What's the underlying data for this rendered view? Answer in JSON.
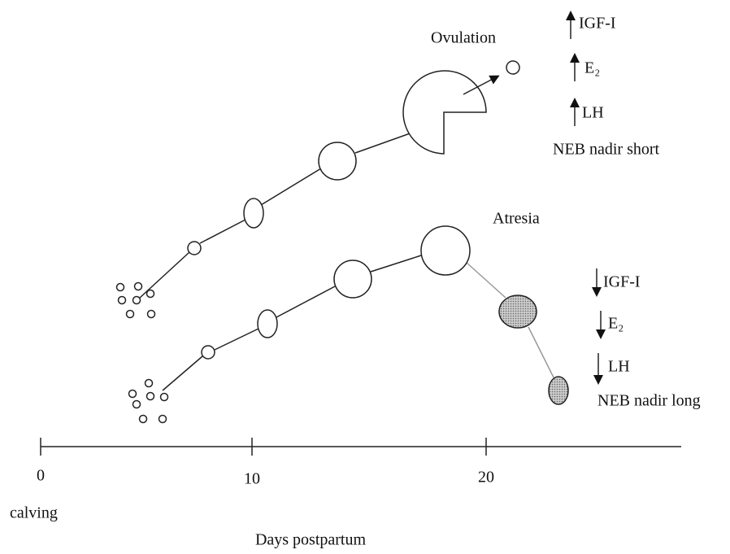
{
  "labels": {
    "ovulation": "Ovulation",
    "atresia": "Atresia"
  },
  "short": {
    "factors": [
      "IGF-I",
      "E₂",
      "LH"
    ],
    "caption": "NEB nadir short"
  },
  "long": {
    "factors": [
      "IGF-I",
      "E₂",
      "LH"
    ],
    "caption": "NEB nadir long"
  },
  "axis": {
    "ticks": [
      "0",
      "10",
      "20"
    ],
    "origin_label": "calving",
    "title": "Days postpartum"
  }
}
